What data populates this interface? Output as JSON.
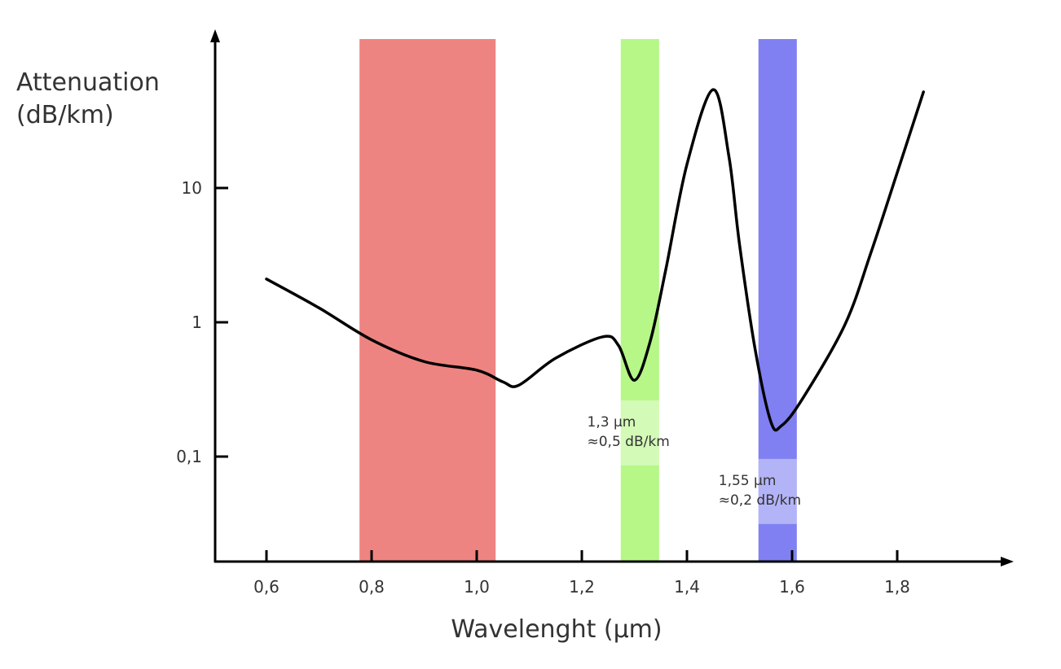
{
  "chart_data": {
    "type": "line",
    "title": "",
    "xlabel": "Wavelenght (µm)",
    "ylabel_lines": [
      "Attenuation",
      "(dB/km)"
    ],
    "xlim": [
      0.5,
      1.98
    ],
    "ylim": [
      0.02,
      100
    ],
    "y_scale": "log",
    "grid": false,
    "x_ticks": [
      0.6,
      0.8,
      1.0,
      1.2,
      1.4,
      1.6,
      1.8
    ],
    "x_tick_labels": [
      "0,6",
      "0,8",
      "1,0",
      "1,2",
      "1,4",
      "1,6",
      "1,8"
    ],
    "y_ticks": [
      10,
      1,
      0.1
    ],
    "y_tick_labels": [
      "10",
      "1",
      "0,1"
    ],
    "series": [
      {
        "color": "#000000",
        "x": [
          0.6,
          0.7,
          0.8,
          0.9,
          1.0,
          1.05,
          1.08,
          1.15,
          1.24,
          1.27,
          1.3,
          1.33,
          1.36,
          1.4,
          1.45,
          1.48,
          1.5,
          1.53,
          1.56,
          1.58,
          1.62,
          1.7,
          1.75,
          1.8,
          1.85
        ],
        "y": [
          2.1,
          1.28,
          0.74,
          0.51,
          0.44,
          0.36,
          0.34,
          0.54,
          0.78,
          0.67,
          0.37,
          0.72,
          2.5,
          15,
          54,
          17,
          3.8,
          0.62,
          0.18,
          0.17,
          0.27,
          0.95,
          3.3,
          13,
          52
        ]
      }
    ],
    "bands": [
      {
        "x_range": [
          0.777,
          1.036
        ],
        "color": "#ee8481"
      },
      {
        "x_range": [
          1.274,
          1.347
        ],
        "color": "#b6f787"
      },
      {
        "x_range": [
          1.536,
          1.609
        ],
        "color": "#8080f2"
      }
    ],
    "annotations": [
      {
        "lines": [
          "1,3 µm",
          "≈0,5 dB/km"
        ],
        "x": 1.3,
        "y": 0.15
      },
      {
        "lines": [
          "1,55 µm",
          "≈0,2 dB/km"
        ],
        "x": 1.55,
        "y": 0.055
      }
    ]
  }
}
